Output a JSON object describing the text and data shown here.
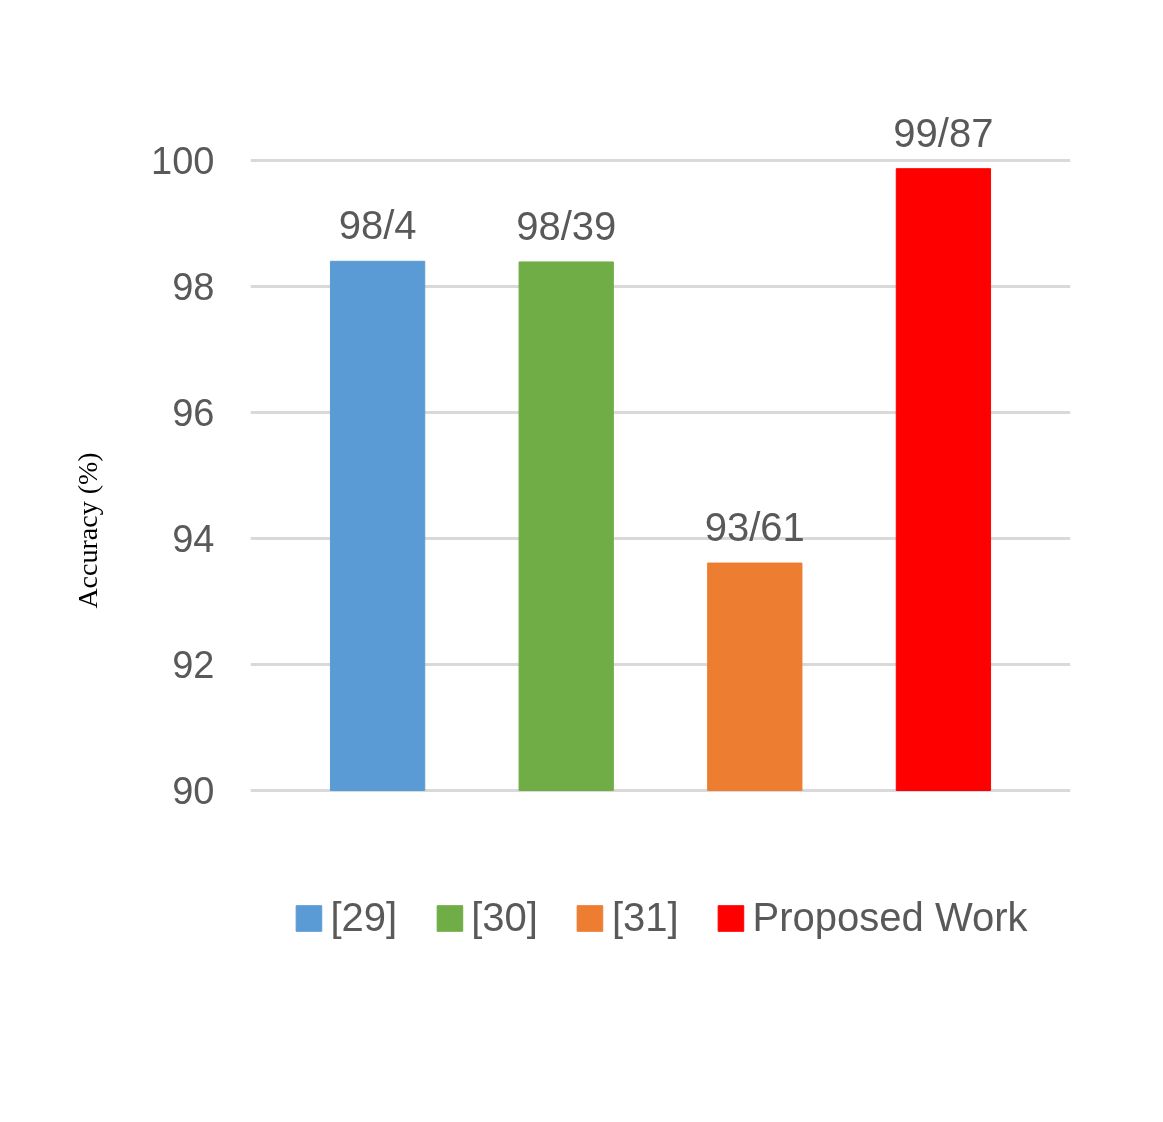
{
  "chart_data": {
    "type": "bar",
    "ylabel": "Accuracy (%)",
    "categories": [
      null
    ],
    "series": [
      {
        "name": "[29]",
        "color": "#5b9bd5",
        "values": [
          98.4
        ],
        "value_labels": [
          "98/4"
        ]
      },
      {
        "name": "[30]",
        "color": "#70ad47",
        "values": [
          98.39
        ],
        "value_labels": [
          "98/39"
        ]
      },
      {
        "name": "[31]",
        "color": "#ed7d31",
        "values": [
          93.61
        ],
        "value_labels": [
          "93/61"
        ]
      },
      {
        "name": "Proposed Work",
        "color": "#ff0000",
        "values": [
          99.87
        ],
        "value_labels": [
          "99/87"
        ]
      }
    ],
    "ylim": [
      90,
      100
    ],
    "yticks": [
      90,
      92,
      94,
      96,
      98,
      100
    ],
    "grid": "y",
    "legend": "bottom",
    "tick_labels": "y"
  }
}
